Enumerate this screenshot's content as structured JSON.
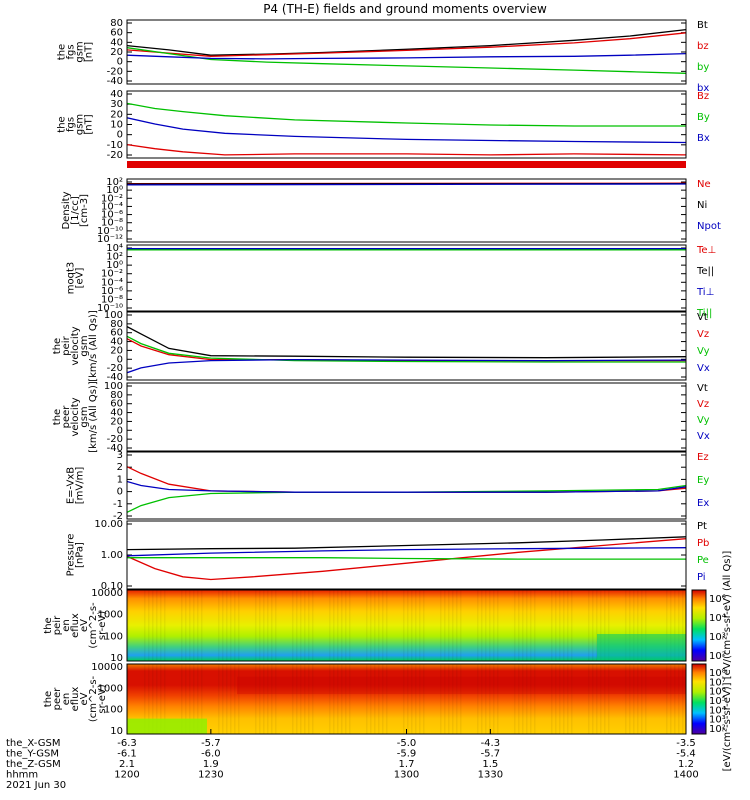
{
  "title": "P4 (TH-E) fields and ground moments overview",
  "colors": {
    "black": "#000000",
    "red": "#e00000",
    "green": "#00c000",
    "blue": "#0000c0"
  },
  "chart_data": [
    {
      "type": "line",
      "panel_label": [
        "the",
        "fgs",
        "gsm",
        "[nT]"
      ],
      "yticks": [
        "80",
        "60",
        "40",
        "20",
        "0",
        "-20",
        "-40"
      ],
      "ylim": [
        -40,
        80
      ],
      "series": [
        {
          "name": "Bt",
          "color": "black",
          "x": [
            1200,
            1215,
            1230,
            1250,
            1270,
            1300,
            1330,
            1360,
            1380,
            1400
          ],
          "y": [
            32,
            24,
            14,
            16,
            19,
            25,
            32,
            42,
            50,
            62
          ]
        },
        {
          "name": "bz",
          "color": "red",
          "x": [
            1200,
            1215,
            1230,
            1250,
            1270,
            1300,
            1330,
            1360,
            1380,
            1400
          ],
          "y": [
            24,
            18,
            12,
            15,
            18,
            23,
            29,
            37,
            45,
            56
          ]
        },
        {
          "name": "by",
          "color": "green",
          "x": [
            1200,
            1215,
            1230,
            1250,
            1270,
            1300,
            1330,
            1360,
            1380,
            1400
          ],
          "y": [
            28,
            17,
            6,
            1,
            -2,
            -6,
            -10,
            -14,
            -17,
            -20
          ]
        },
        {
          "name": "bx",
          "color": "blue",
          "x": [
            1200,
            1215,
            1230,
            1250,
            1270,
            1300,
            1330,
            1360,
            1380,
            1400
          ],
          "y": [
            14,
            11,
            8,
            7,
            8,
            9,
            11,
            12,
            14,
            17
          ]
        }
      ]
    },
    {
      "type": "line",
      "panel_label": [
        "the",
        "fgs",
        "gsm",
        "[nT]"
      ],
      "yticks": [
        "40",
        "30",
        "20",
        "10",
        "0",
        "-10",
        "-20"
      ],
      "ylim": [
        -25,
        40
      ],
      "series": [
        {
          "name": "Bz",
          "color": "red",
          "x": [
            1200,
            1210,
            1220,
            1235,
            1260,
            1300,
            1330,
            1360,
            1400
          ],
          "y": [
            -12,
            -16,
            -19,
            -22,
            -21,
            -21,
            -22,
            -21,
            -22
          ]
        },
        {
          "name": "By",
          "color": "green",
          "x": [
            1200,
            1210,
            1220,
            1235,
            1260,
            1300,
            1330,
            1360,
            1400
          ],
          "y": [
            28,
            23,
            20,
            16,
            12,
            9,
            7,
            6,
            6
          ]
        },
        {
          "name": "Bx",
          "color": "blue",
          "x": [
            1200,
            1210,
            1220,
            1235,
            1260,
            1300,
            1330,
            1360,
            1400
          ],
          "y": [
            14,
            8,
            3,
            -1,
            -4,
            -7,
            -8,
            -9,
            -10
          ]
        }
      ]
    },
    {
      "type": "line",
      "scale": "log",
      "panel_label": [
        "Density",
        "[1/cc]",
        "[cm-3]"
      ],
      "yticks": [
        "10²",
        "10⁰",
        "10⁻²",
        "10⁻⁴",
        "10⁻⁶",
        "10⁻⁸",
        "10⁻¹⁰",
        "10⁻¹²"
      ],
      "ylim": [
        -13,
        2
      ],
      "series": [
        {
          "name": "Ne",
          "color": "red",
          "x": [
            1200,
            1400
          ],
          "y": [
            0.9,
            1.0
          ]
        },
        {
          "name": "Ni",
          "color": "black",
          "x": [
            1200,
            1400
          ],
          "y": [
            0.8,
            0.9
          ]
        },
        {
          "name": "Npot",
          "color": "blue",
          "x": [
            1200,
            1400
          ],
          "y": [
            0.6,
            0.8
          ]
        }
      ]
    },
    {
      "type": "line",
      "scale": "log",
      "panel_label": [
        "moqt3",
        "[eV]"
      ],
      "yticks": [
        "10⁴",
        "10²",
        "10⁰",
        "10⁻²",
        "10⁻⁴",
        "10⁻⁶",
        "10⁻⁸",
        "10⁻¹⁰"
      ],
      "ylim": [
        -11,
        5
      ],
      "series": [
        {
          "name": "Te⊥",
          "color": "red",
          "x": [
            1200,
            1400
          ],
          "y": [
            4,
            4
          ]
        },
        {
          "name": "Te||",
          "color": "black",
          "x": [
            1200,
            1400
          ],
          "y": [
            3.9,
            3.9
          ]
        },
        {
          "name": "Ti⊥",
          "color": "blue",
          "x": [
            1200,
            1400
          ],
          "y": [
            4.1,
            4.1
          ]
        },
        {
          "name": "Ti||",
          "color": "green",
          "x": [
            1200,
            1400
          ],
          "y": [
            3.8,
            3.8
          ]
        }
      ]
    },
    {
      "type": "line",
      "panel_label": [
        "the",
        "peir",
        "velocity",
        "gsm",
        "[km/s (All Qs)]"
      ],
      "yticks": [
        "100",
        "80",
        "60",
        "40",
        "20",
        "0",
        "-20",
        "-40"
      ],
      "ylim": [
        -40,
        100
      ],
      "series": [
        {
          "name": "Vt",
          "color": "black",
          "x": [
            1200,
            1205,
            1215,
            1230,
            1260,
            1300,
            1350,
            1400
          ],
          "y": [
            70,
            55,
            25,
            10,
            9,
            7,
            6,
            8
          ]
        },
        {
          "name": "Vz",
          "color": "red",
          "x": [
            1200,
            1205,
            1215,
            1230,
            1260,
            1300,
            1350,
            1400
          ],
          "y": [
            45,
            30,
            12,
            2,
            2,
            0,
            0,
            0
          ]
        },
        {
          "name": "Vy",
          "color": "green",
          "x": [
            1200,
            1205,
            1215,
            1230,
            1260,
            1300,
            1350,
            1400
          ],
          "y": [
            50,
            35,
            15,
            5,
            0,
            -2,
            -3,
            -3
          ]
        },
        {
          "name": "Vx",
          "color": "blue",
          "x": [
            1200,
            1205,
            1215,
            1230,
            1260,
            1300,
            1350,
            1400
          ],
          "y": [
            -25,
            -15,
            -5,
            0,
            2,
            1,
            0,
            1
          ]
        }
      ]
    },
    {
      "type": "line",
      "panel_label": [
        "the",
        "peer",
        "velocity",
        "gsm",
        "[km/s (All Qs)]"
      ],
      "yticks": [
        "100",
        "80",
        "60",
        "40",
        "20",
        "0",
        "-20",
        "-40"
      ],
      "ylim": [
        -40,
        100
      ],
      "series": [
        {
          "name": "Vt",
          "color": "black",
          "x": [],
          "y": []
        },
        {
          "name": "Vz",
          "color": "red",
          "x": [],
          "y": []
        },
        {
          "name": "Vy",
          "color": "green",
          "x": [],
          "y": []
        },
        {
          "name": "Vx",
          "color": "blue",
          "x": [],
          "y": []
        }
      ]
    },
    {
      "type": "line",
      "panel_label": [
        "E=-VxB",
        "[mV/m]"
      ],
      "yticks": [
        "3",
        "2",
        "1",
        "0",
        "-1",
        "-2"
      ],
      "ylim": [
        -2,
        3
      ],
      "series": [
        {
          "name": "Ez",
          "color": "red",
          "x": [
            1200,
            1205,
            1215,
            1230,
            1260,
            1300,
            1350,
            1390,
            1400
          ],
          "y": [
            1.9,
            1.4,
            0.6,
            0.1,
            0,
            0,
            0,
            0.1,
            0.3
          ]
        },
        {
          "name": "Ey",
          "color": "green",
          "x": [
            1200,
            1205,
            1215,
            1230,
            1260,
            1300,
            1350,
            1390,
            1400
          ],
          "y": [
            -1.5,
            -1.0,
            -0.4,
            -0.1,
            0,
            0,
            0.1,
            0.2,
            0.5
          ]
        },
        {
          "name": "Ex",
          "color": "blue",
          "x": [
            1200,
            1205,
            1215,
            1230,
            1260,
            1300,
            1350,
            1390,
            1400
          ],
          "y": [
            0.8,
            0.5,
            0.2,
            0.1,
            0,
            0,
            0,
            0.1,
            0.4
          ]
        }
      ]
    },
    {
      "type": "line",
      "scale": "log",
      "panel_label": [
        "Pressure",
        "[nPa]"
      ],
      "yticks": [
        "10.00",
        "1.00",
        "0.10"
      ],
      "ylim": [
        -1.5,
        1
      ],
      "series": [
        {
          "name": "Pt",
          "color": "black",
          "x": [
            1200,
            1230,
            1260,
            1300,
            1340,
            1370,
            1400
          ],
          "y": [
            -0.05,
            -0.02,
            0.0,
            0.1,
            0.2,
            0.3,
            0.42
          ]
        },
        {
          "name": "Pb",
          "color": "red",
          "x": [
            1200,
            1210,
            1220,
            1230,
            1245,
            1270,
            1300,
            1340,
            1370,
            1400
          ],
          "y": [
            -0.3,
            -0.75,
            -1.05,
            -1.15,
            -1.05,
            -0.85,
            -0.55,
            -0.15,
            0.1,
            0.35
          ]
        },
        {
          "name": "Pe",
          "color": "green",
          "x": [
            1200,
            1230,
            1270,
            1300,
            1340,
            1370,
            1400
          ],
          "y": [
            -0.35,
            -0.35,
            -0.35,
            -0.38,
            -0.4,
            -0.4,
            -0.4
          ]
        },
        {
          "name": "Pi",
          "color": "blue",
          "x": [
            1200,
            1230,
            1270,
            1300,
            1340,
            1370,
            1400
          ],
          "y": [
            -0.28,
            -0.18,
            -0.1,
            -0.05,
            -0.02,
            0.0,
            0.02
          ]
        }
      ]
    },
    {
      "type": "heatmap",
      "panel_label": [
        "the",
        "peir",
        "en",
        "eflux",
        "eV",
        "(cm^2-s-",
        "sr-eV)"
      ],
      "yticks": [
        "10000",
        "1000",
        "100",
        "10"
      ],
      "colorbar_ticks": [
        "10⁶",
        "10⁴",
        "10³",
        "10²"
      ]
    },
    {
      "type": "heatmap",
      "panel_label": [
        "the",
        "peer",
        "en",
        "eflux",
        "eV",
        "(cm^2-s-",
        "sr-eV)"
      ],
      "yticks": [
        "10000",
        "1000",
        "100",
        "10"
      ],
      "colorbar_ticks": [
        "10⁸",
        "10⁷",
        "10⁶",
        "10⁵",
        "10⁴",
        "10³",
        "10²"
      ]
    }
  ],
  "colorbar_title": "[eV/(cm²-s-sr-eV)] [eV/(cm²-s-sr-eV) (All Qs)]",
  "xaxis": {
    "rows": [
      {
        "label": "the_X-GSM",
        "values": [
          "-6.3",
          "-5.7",
          "-5.0",
          "-4.3",
          "-3.5"
        ]
      },
      {
        "label": "the_Y-GSM",
        "values": [
          "-6.1",
          "-6.0",
          "-5.9",
          "-5.7",
          "-5.4"
        ]
      },
      {
        "label": "the_Z-GSM",
        "values": [
          "2.1",
          "1.9",
          "1.7",
          "1.5",
          "1.2"
        ]
      },
      {
        "label": "hhmm",
        "values": [
          "1200",
          "1230",
          "1300",
          "1330",
          "1400"
        ]
      }
    ],
    "date": "2021 Jun 30",
    "xlim": [
      1200,
      1400
    ]
  }
}
